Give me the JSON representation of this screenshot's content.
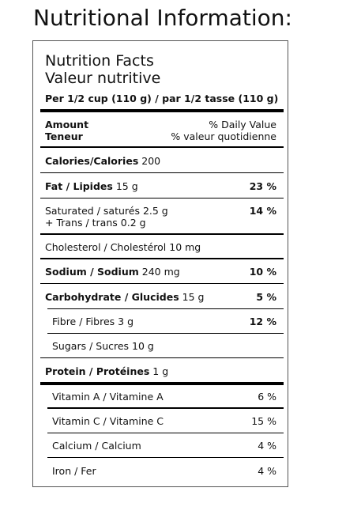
{
  "page": {
    "heading": "Nutritional Information:"
  },
  "label": {
    "title_en": "Nutrition Facts",
    "title_fr": "Valeur nutritive",
    "serving": "Per 1/2 cup (110 g) / par 1/2 tasse (110 g)",
    "header": {
      "amount_en": "Amount",
      "amount_fr": "Teneur",
      "dv_en": "% Daily Value",
      "dv_fr": "% valeur quotidienne"
    },
    "calories": {
      "label": "Calories/Calories",
      "value": "200"
    },
    "fat": {
      "label": "Fat / Lipides",
      "value": "15 g",
      "dv": "23 %"
    },
    "saturated": {
      "label": "Saturated / saturés",
      "value": "2.5 g",
      "dv": "14 %"
    },
    "trans": {
      "label": "+ Trans / trans",
      "value": "0.2 g"
    },
    "cholesterol": {
      "label": "Cholesterol / Cholestérol",
      "value": "10 mg"
    },
    "sodium": {
      "label": "Sodium / Sodium",
      "value": "240 mg",
      "dv": "10 %"
    },
    "carbohydrate": {
      "label": "Carbohydrate / Glucides",
      "value": "15 g",
      "dv": "5 %"
    },
    "fibre": {
      "label": "Fibre / Fibres",
      "value": "3 g",
      "dv": "12 %"
    },
    "sugars": {
      "label": "Sugars / Sucres",
      "value": "10 g"
    },
    "protein": {
      "label": "Protein / Protéines",
      "value": "1 g"
    },
    "vitamins": [
      {
        "label": "Vitamin A / Vitamine A",
        "dv": "6 %"
      },
      {
        "label": "Vitamin C / Vitamine C",
        "dv": "15 %"
      },
      {
        "label": "Calcium / Calcium",
        "dv": "4 %"
      },
      {
        "label": "Iron / Fer",
        "dv": "4 %"
      }
    ]
  }
}
